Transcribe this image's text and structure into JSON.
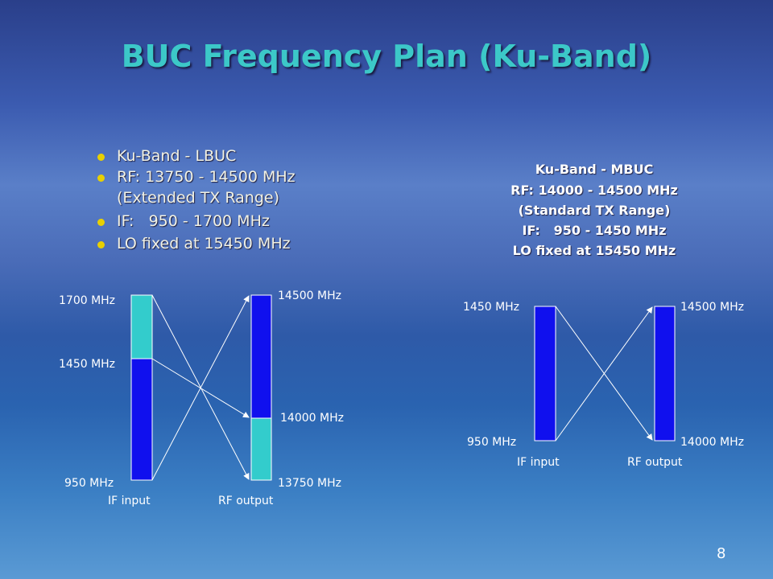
{
  "title": "BUC Frequency Plan (Ku-Band)",
  "left_bullets": [
    "Ku-Band - LBUC",
    "RF: 13750 - 14500 MHz",
    "(Extended TX Range)",
    "IF:   950 - 1700 MHz",
    "LO fixed at 15450 MHz"
  ],
  "right_block": [
    "Ku-Band - MBUC",
    "RF: 14000 - 14500 MHz",
    "(Standard TX Range)",
    "IF:   950 - 1450 MHz",
    "LO fixed at 15450 MHz"
  ],
  "left_diagram": {
    "if_labels": [
      "1700 MHz",
      "1450 MHz",
      "950 MHz"
    ],
    "rf_labels": [
      "14500 MHz",
      "14000 MHz",
      "13750 MHz"
    ],
    "if_caption": "IF input",
    "rf_caption": "RF output"
  },
  "right_diagram": {
    "if_labels": [
      "1450 MHz",
      "950 MHz"
    ],
    "rf_labels": [
      "14500 MHz",
      "14000 MHz"
    ],
    "if_caption": "IF input",
    "rf_caption": "RF output"
  },
  "page_number": "8"
}
